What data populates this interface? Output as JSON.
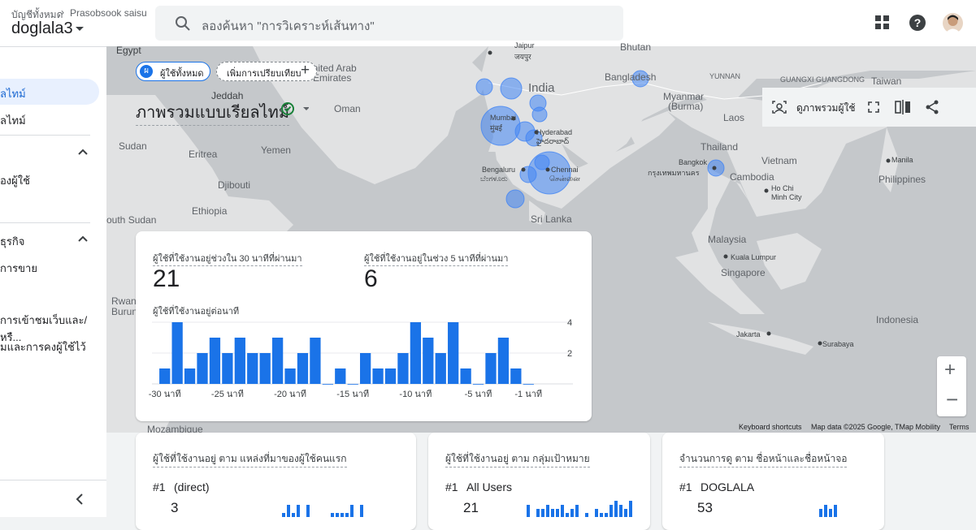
{
  "header": {
    "breadcrumb_root": "บัญชีทั้งหมด",
    "breadcrumb_account": "Prasobsook saisud",
    "property": "doglala3",
    "search_placeholder": "ลองค้นหา \"การวิเคราะห์เส้นทาง\""
  },
  "sidebar": {
    "items": [
      "ลไทม์",
      "ลไทม์",
      "องผู้ใช้",
      "ธุรกิจ",
      "การขาย",
      "การเข้าชมเว็บและ/หรื...",
      "มและการคงผู้ใช้ไว้"
    ]
  },
  "map": {
    "labels": [
      "Egypt",
      "Jaipur",
      "जयपुर",
      "United Arab",
      "Emirates",
      "Bhutan",
      "Bangladesh",
      "YUNNAN",
      "GUANGXI GUANGDONG",
      "Taiwan",
      "India",
      "Jeddah",
      "Oman",
      "Mumbai",
      "मुंबई",
      "Hyderabad",
      "హైదరాబాద్",
      "Myanmar",
      "(Burma)",
      "Laos",
      "Sudan",
      "Eritrea",
      "Yemen",
      "Thailand",
      "Manila",
      "Vietnam",
      "Bangkok",
      "กรุงเทพมหานคร",
      "Philippines",
      "Cambodia",
      "Djibouti",
      "Bengaluru",
      "ಬೆಂಗಳೂರು",
      "Chennai",
      "சென்னை",
      "Ho Chi",
      "Minh City",
      "Ethiopia",
      "outh Sudan",
      "Sri Lanka",
      "Malaysia",
      "Kuala Lumpur",
      "Singapore",
      "Indonesia",
      "Jakarta",
      "Surabaya",
      "Mozambique",
      "Rwanda",
      "Burundi"
    ],
    "footer": [
      "Keyboard shortcuts",
      "Map data ©2025 Google, TMap Mobility",
      "Terms"
    ]
  },
  "toolbar": {
    "chip_avatar": "ผ",
    "chip_all_users": "ผู้ใช้ทั้งหมด",
    "add_comparison": "เพิ่มการเปรียบเทียบ",
    "title": "ภาพรวมแบบเรียลไทม์",
    "user_snapshot": "ดูภาพรวมผู้ใช้"
  },
  "realtime_card": {
    "metric_30_label": "ผู้ใช้ที่ใช้งานอยู่ช่วงใน 30 นาทีที่ผ่านมา",
    "metric_30_value": 21,
    "metric_5_label": "ผู้ใช้ที่ใช้งานอยู่ในช่วง 5 นาทีที่ผ่านมา",
    "metric_5_value": 6
  },
  "chart_data": {
    "type": "bar",
    "title": "ผู้ใช้ที่ใช้งานอยู่ต่อนาที",
    "color": "#1a73e8",
    "categories": [
      "-30 นาที",
      null,
      null,
      null,
      null,
      "-25 นาที",
      null,
      null,
      null,
      null,
      "-20 นาที",
      null,
      null,
      null,
      null,
      "-15 นาที",
      null,
      null,
      null,
      null,
      "-10 นาที",
      null,
      null,
      null,
      null,
      "-5 นาที",
      null,
      null,
      null,
      "-1 นาที"
    ],
    "values": [
      1,
      4,
      1,
      2,
      3,
      2,
      3,
      2,
      2,
      3,
      1,
      2,
      3,
      0,
      1,
      0,
      2,
      1,
      1,
      2,
      4,
      3,
      2,
      4,
      1,
      0,
      2,
      3,
      1,
      0
    ],
    "ylim": [
      0,
      4
    ],
    "yticks": [
      2,
      4
    ],
    "grid": true
  },
  "cards": [
    {
      "title": "ผู้ใช้ที่ใช้งานอยู่ ตาม แหล่งที่มาของผู้ใช้คนแรก",
      "rank": "#1",
      "name": "(direct)",
      "value": 3,
      "sparkline": [
        0,
        0,
        0,
        0,
        1,
        3,
        1,
        3,
        0,
        3,
        0,
        0,
        0,
        0,
        1,
        1,
        1,
        1,
        3,
        0,
        3
      ]
    },
    {
      "title": "ผู้ใช้ที่ใช้งานอยู่ ตาม กลุ่มเป้าหมาย",
      "rank": "#1",
      "name": "All Users",
      "value": 21,
      "sparkline": [
        3,
        0,
        2,
        2,
        3,
        2,
        2,
        3,
        1,
        2,
        3,
        0,
        1,
        0,
        2,
        1,
        1,
        3,
        4,
        3,
        2,
        4
      ]
    },
    {
      "title": "จำนวนการดู ตาม ชื่อหน้าและชื่อหน้าจอ",
      "rank": "#1",
      "name": "DOGLALA",
      "value": 53,
      "sparkline": [
        2,
        3,
        2,
        3
      ]
    }
  ]
}
